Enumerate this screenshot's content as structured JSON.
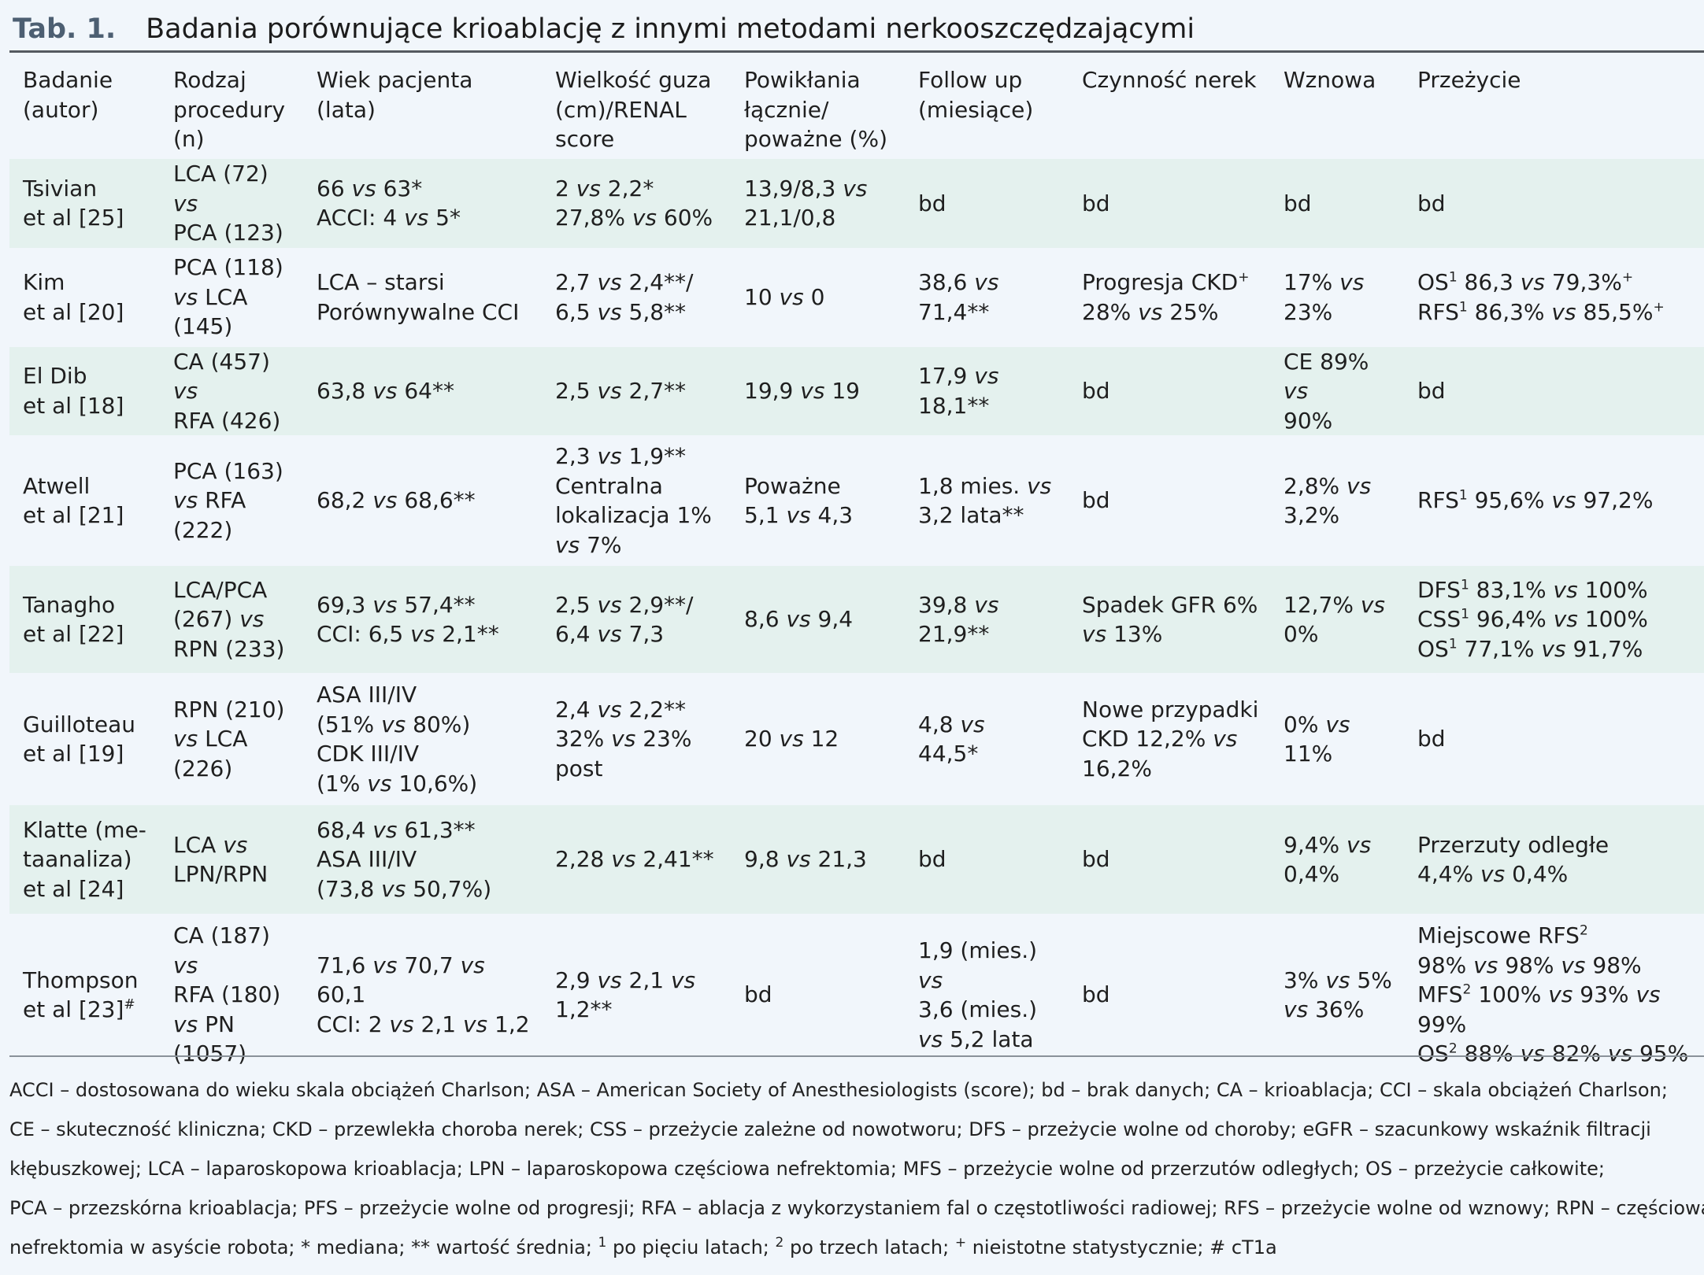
{
  "table_label": "Tab. 1.",
  "table_title": "Badania porównujące krioablację z innymi metodami nerkooszczędzającymi",
  "headers": [
    [
      "Badanie",
      "(autor)"
    ],
    [
      "Rodzaj",
      "procedury",
      "(n)"
    ],
    [
      "Wiek pacjenta",
      "(lata)"
    ],
    [
      "Wielkość guza",
      "(cm)/RENAL",
      "score"
    ],
    [
      "Powikłania",
      "łącznie/",
      "poważne (%)"
    ],
    [
      "Follow up",
      "(miesiące)"
    ],
    [
      "Czynność nerek"
    ],
    [
      "Wznowa"
    ],
    [
      "Przeżycie"
    ]
  ],
  "rows": [
    {
      "study": [
        "Tsivian",
        "et al [25]"
      ],
      "procedure": [
        "LCA (72) vs",
        "PCA (123)"
      ],
      "age": [
        "66 vs 63*",
        "ACCI: 4 vs 5*"
      ],
      "tumor": [
        "2 vs 2,2*",
        "27,8% vs 60%"
      ],
      "complications": [
        "13,9/8,3 vs",
        "21,1/0,8"
      ],
      "followup": [
        "bd"
      ],
      "kidney": [
        "bd"
      ],
      "recurrence": [
        "bd"
      ],
      "survival": [
        "bd"
      ]
    },
    {
      "study": [
        "Kim",
        "et al [20]"
      ],
      "procedure": [
        "PCA (118)",
        "vs LCA",
        "(145)"
      ],
      "age": [
        "LCA – starsi",
        "Porównywalne CCI"
      ],
      "tumor": [
        "2,7 vs 2,4**/",
        "6,5 vs 5,8**"
      ],
      "complications": [
        "10 vs 0"
      ],
      "followup": [
        "38,6 vs",
        "71,4**"
      ],
      "kidney": [
        "Progresja CKD⁺",
        "28% vs 25%"
      ],
      "recurrence": [
        "17% vs",
        "23%"
      ],
      "survival": [
        "OS¹ 86,3 vs 79,3%⁺",
        "RFS¹ 86,3% vs 85,5%⁺"
      ]
    },
    {
      "study": [
        "El Dib",
        "et al [18]"
      ],
      "procedure": [
        "CA (457) vs",
        "RFA (426)"
      ],
      "age": [
        "63,8 vs 64**"
      ],
      "tumor": [
        "2,5 vs 2,7**"
      ],
      "complications": [
        "19,9 vs 19"
      ],
      "followup": [
        "17,9 vs",
        "18,1**"
      ],
      "kidney": [
        "bd"
      ],
      "recurrence": [
        "CE 89% vs",
        "90%"
      ],
      "survival": [
        "bd"
      ]
    },
    {
      "study": [
        "Atwell",
        "et al [21]"
      ],
      "procedure": [
        "PCA (163)",
        "vs RFA",
        "(222)"
      ],
      "age": [
        "68,2 vs 68,6**"
      ],
      "tumor": [
        "2,3 vs 1,9**",
        "Centralna",
        "lokalizacja 1%",
        "vs 7%"
      ],
      "complications": [
        "Poważne",
        "5,1 vs 4,3"
      ],
      "followup": [
        "1,8 mies. vs",
        "3,2 lata**"
      ],
      "kidney": [
        "bd"
      ],
      "recurrence": [
        "2,8% vs",
        "3,2%"
      ],
      "survival": [
        "RFS¹ 95,6% vs 97,2%"
      ]
    },
    {
      "study": [
        "Tanagho",
        "et al [22]"
      ],
      "procedure": [
        "LCA/PCA",
        "(267) vs",
        "RPN (233)"
      ],
      "age": [
        "69,3 vs 57,4**",
        "CCI: 6,5 vs 2,1**"
      ],
      "tumor": [
        "2,5 vs 2,9**/",
        "6,4 vs 7,3"
      ],
      "complications": [
        "8,6 vs 9,4"
      ],
      "followup": [
        "39,8 vs",
        "21,9**"
      ],
      "kidney": [
        "Spadek GFR 6%",
        "vs 13%"
      ],
      "recurrence": [
        "12,7% vs",
        "0%"
      ],
      "survival": [
        "DFS¹ 83,1% vs 100%",
        "CSS¹ 96,4% vs 100%",
        "OS¹ 77,1% vs 91,7%"
      ]
    },
    {
      "study": [
        "Guilloteau",
        "et al [19]"
      ],
      "procedure": [
        "RPN (210)",
        "vs LCA",
        "(226)"
      ],
      "age": [
        "ASA III/IV",
        "(51% vs 80%)",
        "CDK III/IV",
        "(1% vs 10,6%)"
      ],
      "tumor": [
        "2,4 vs 2,2**",
        "32% vs 23%",
        "post"
      ],
      "complications": [
        "20 vs 12"
      ],
      "followup": [
        "4,8 vs",
        "44,5*"
      ],
      "kidney": [
        "Nowe przypadki",
        "CKD 12,2% vs",
        "16,2%"
      ],
      "recurrence": [
        "0% vs",
        "11%"
      ],
      "survival": [
        "bd"
      ]
    },
    {
      "study": [
        "Klatte (me-",
        "taanaliza)",
        "et al [24]"
      ],
      "procedure": [
        "LCA vs",
        "LPN/RPN"
      ],
      "age": [
        "68,4 vs 61,3**",
        "ASA III/IV",
        "(73,8 vs 50,7%)"
      ],
      "tumor": [
        "2,28 vs 2,41**"
      ],
      "complications": [
        "9,8 vs 21,3"
      ],
      "followup": [
        "bd"
      ],
      "kidney": [
        "bd"
      ],
      "recurrence": [
        "9,4% vs",
        "0,4%"
      ],
      "survival": [
        "Przerzuty odległe",
        "4,4% vs 0,4%"
      ]
    },
    {
      "study": [
        "Thompson",
        "et al [23]#"
      ],
      "procedure": [
        "CA (187) vs",
        "RFA (180)",
        "vs PN",
        "(1057)"
      ],
      "age": [
        "71,6 vs 70,7 vs 60,1",
        "CCI: 2 vs 2,1 vs 1,2"
      ],
      "tumor": [
        "2,9 vs 2,1 vs",
        "1,2**"
      ],
      "complications": [
        "bd"
      ],
      "followup": [
        "1,9 (mies.) vs",
        "3,6 (mies.)",
        "vs 5,2 lata"
      ],
      "kidney": [
        "bd"
      ],
      "recurrence": [
        "3% vs 5%",
        "vs 36%"
      ],
      "survival": [
        "Miejscowe RFS²",
        "98% vs 98% vs 98%",
        "MFS² 100% vs 93% vs",
        "99%",
        "OS² 88% vs 82% vs 95%"
      ]
    }
  ],
  "footnote_lines": [
    "ACCI – dostosowana do wieku skala obciążeń Charlson; ASA – American Society of Anesthesiologists (score); bd – brak danych; CA – krioablacja; CCI – skala obciążeń Charlson;",
    "CE – skuteczność kliniczna; CKD – przewlekła choroba nerek; CSS – przeżycie zależne od nowotworu; DFS – przeżycie wolne od choroby; eGFR – szacunkowy wskaźnik filtracji",
    "kłębuszkowej; LCA – laparoskopowa krioablacja; LPN – laparoskopowa częściowa nefrektomia; MFS – przeżycie wolne od przerzutów odległych; OS – przeżycie całkowite;",
    "PCA – przezskórna krioablacja; PFS – przeżycie wolne od progresji; RFA – ablacja z wykorzystaniem fal o częstotliwości radiowej; RFS – przeżycie wolne od wznowy; RPN – częściowa",
    "nefrektomia w asyście robota; * mediana; ** wartość średnia; ¹ po pięciu latach; ² po trzech latach; ⁺ nieistotne statystycznie; # cT1a"
  ]
}
